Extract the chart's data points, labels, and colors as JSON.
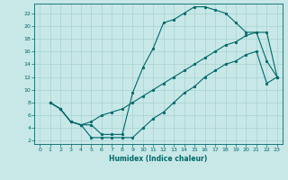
{
  "background_color": "#c8e8e8",
  "grid_color": "#a8d0d0",
  "line_color": "#006868",
  "xlabel": "Humidex (Indice chaleur)",
  "xlim": [
    -0.5,
    23.5
  ],
  "ylim": [
    1.5,
    23.5
  ],
  "yticks": [
    2,
    4,
    6,
    8,
    10,
    12,
    14,
    16,
    18,
    20,
    22
  ],
  "xticks": [
    0,
    1,
    2,
    3,
    4,
    5,
    6,
    7,
    8,
    9,
    10,
    11,
    12,
    13,
    14,
    15,
    16,
    17,
    18,
    19,
    20,
    21,
    22,
    23
  ],
  "curve1_x": [
    1,
    2,
    3,
    4,
    5,
    6,
    7,
    8,
    9,
    10,
    11,
    12,
    13,
    14,
    15,
    16,
    17,
    18,
    19,
    20,
    21,
    22,
    23
  ],
  "curve1_y": [
    8,
    7,
    5,
    4.5,
    4.5,
    3,
    3,
    3,
    9.5,
    13.5,
    16.5,
    20.5,
    21,
    22,
    23,
    23,
    22.5,
    22,
    20.5,
    19,
    19,
    14.5,
    12
  ],
  "curve2_x": [
    1,
    2,
    3,
    4,
    5,
    6,
    7,
    8,
    9,
    10,
    11,
    12,
    13,
    14,
    15,
    16,
    17,
    18,
    19,
    20,
    21,
    22,
    23
  ],
  "curve2_y": [
    8,
    7,
    5,
    4.5,
    5,
    6,
    6.5,
    7,
    8,
    9,
    10,
    11,
    12,
    13,
    14,
    15,
    16,
    17,
    17.5,
    18.5,
    19,
    19,
    12
  ],
  "curve3_x": [
    1,
    2,
    3,
    4,
    5,
    6,
    7,
    8,
    9,
    10,
    11,
    12,
    13,
    14,
    15,
    16,
    17,
    18,
    19,
    20,
    21,
    22,
    23
  ],
  "curve3_y": [
    8,
    7,
    5,
    4.5,
    2.5,
    2.5,
    2.5,
    2.5,
    2.5,
    4,
    5.5,
    6.5,
    8,
    9.5,
    10.5,
    12,
    13,
    14,
    14.5,
    15.5,
    16,
    11,
    12
  ]
}
